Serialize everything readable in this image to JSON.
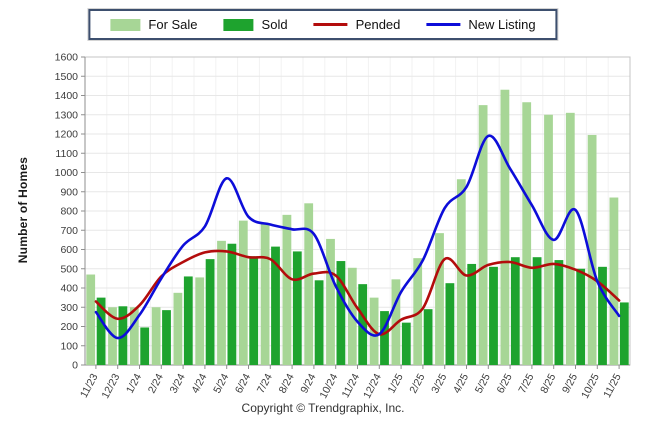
{
  "legend": {
    "items": [
      {
        "label": "For Sale",
        "type": "bar",
        "color": "#a7d696"
      },
      {
        "label": "Sold",
        "type": "bar",
        "color": "#1ea32e"
      },
      {
        "label": "Pended",
        "type": "line",
        "color": "#b30c0c"
      },
      {
        "label": "New Listing",
        "type": "line",
        "color": "#0d0dd9"
      }
    ]
  },
  "y_axis": {
    "title": "Number of Homes",
    "min": 0,
    "max": 1600,
    "step": 100
  },
  "footer": {
    "copyright": "Copyright © Trendgraphix, Inc."
  },
  "chart_data": {
    "type": "bar",
    "subtype": "grouped bars with smoothed overlay lines",
    "title": "",
    "xlabel": "",
    "ylabel": "Number of Homes",
    "ylim": [
      0,
      1600
    ],
    "ytick_step": 100,
    "grid": true,
    "legend_position": "top",
    "categories": [
      "11/23",
      "12/23",
      "1/24",
      "2/24",
      "3/24",
      "4/24",
      "5/24",
      "6/24",
      "7/24",
      "8/24",
      "9/24",
      "10/24",
      "11/24",
      "12/24",
      "1/25",
      "2/25",
      "3/25",
      "4/25",
      "5/25",
      "6/25",
      "7/25",
      "8/25",
      "9/25",
      "10/25",
      "11/25"
    ],
    "series": [
      {
        "name": "For Sale",
        "type": "bar",
        "color": "#a7d696",
        "values": [
          470,
          300,
          300,
          300,
          375,
          455,
          645,
          750,
          735,
          780,
          840,
          655,
          505,
          350,
          445,
          555,
          685,
          965,
          1350,
          1430,
          1365,
          1300,
          1310,
          1195,
          870
        ]
      },
      {
        "name": "Sold",
        "type": "bar",
        "color": "#1ea32e",
        "values": [
          350,
          305,
          195,
          285,
          460,
          550,
          630,
          565,
          615,
          590,
          440,
          540,
          420,
          280,
          220,
          290,
          425,
          525,
          510,
          560,
          560,
          545,
          500,
          510,
          325
        ]
      },
      {
        "name": "Pended",
        "type": "line",
        "color": "#b30c0c",
        "values": [
          330,
          240,
          310,
          460,
          535,
          585,
          590,
          560,
          550,
          445,
          475,
          465,
          295,
          160,
          235,
          295,
          550,
          465,
          520,
          535,
          505,
          525,
          495,
          435,
          335
        ]
      },
      {
        "name": "New Listing",
        "type": "line",
        "color": "#0d0dd9",
        "values": [
          275,
          140,
          260,
          450,
          620,
          720,
          970,
          770,
          730,
          705,
          680,
          410,
          225,
          160,
          380,
          545,
          815,
          925,
          1190,
          1020,
          830,
          650,
          805,
          435,
          255
        ]
      }
    ]
  }
}
